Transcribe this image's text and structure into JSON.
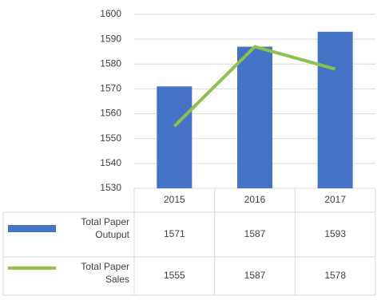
{
  "chart_data": {
    "type": "bar-line",
    "categories": [
      "2015",
      "2016",
      "2017"
    ],
    "series": [
      {
        "name": "Total Paper Outuput",
        "type": "bar",
        "color": "#4472c4",
        "values": [
          1571,
          1587,
          1593
        ]
      },
      {
        "name": "Total Paper Sales",
        "type": "line",
        "color": "#8cc04f",
        "values": [
          1555,
          1587,
          1578
        ]
      }
    ],
    "ylim": [
      1530,
      1600
    ],
    "yticks": [
      1530,
      1540,
      1550,
      1560,
      1570,
      1580,
      1590,
      1600
    ],
    "grid": true,
    "data_table": true
  }
}
